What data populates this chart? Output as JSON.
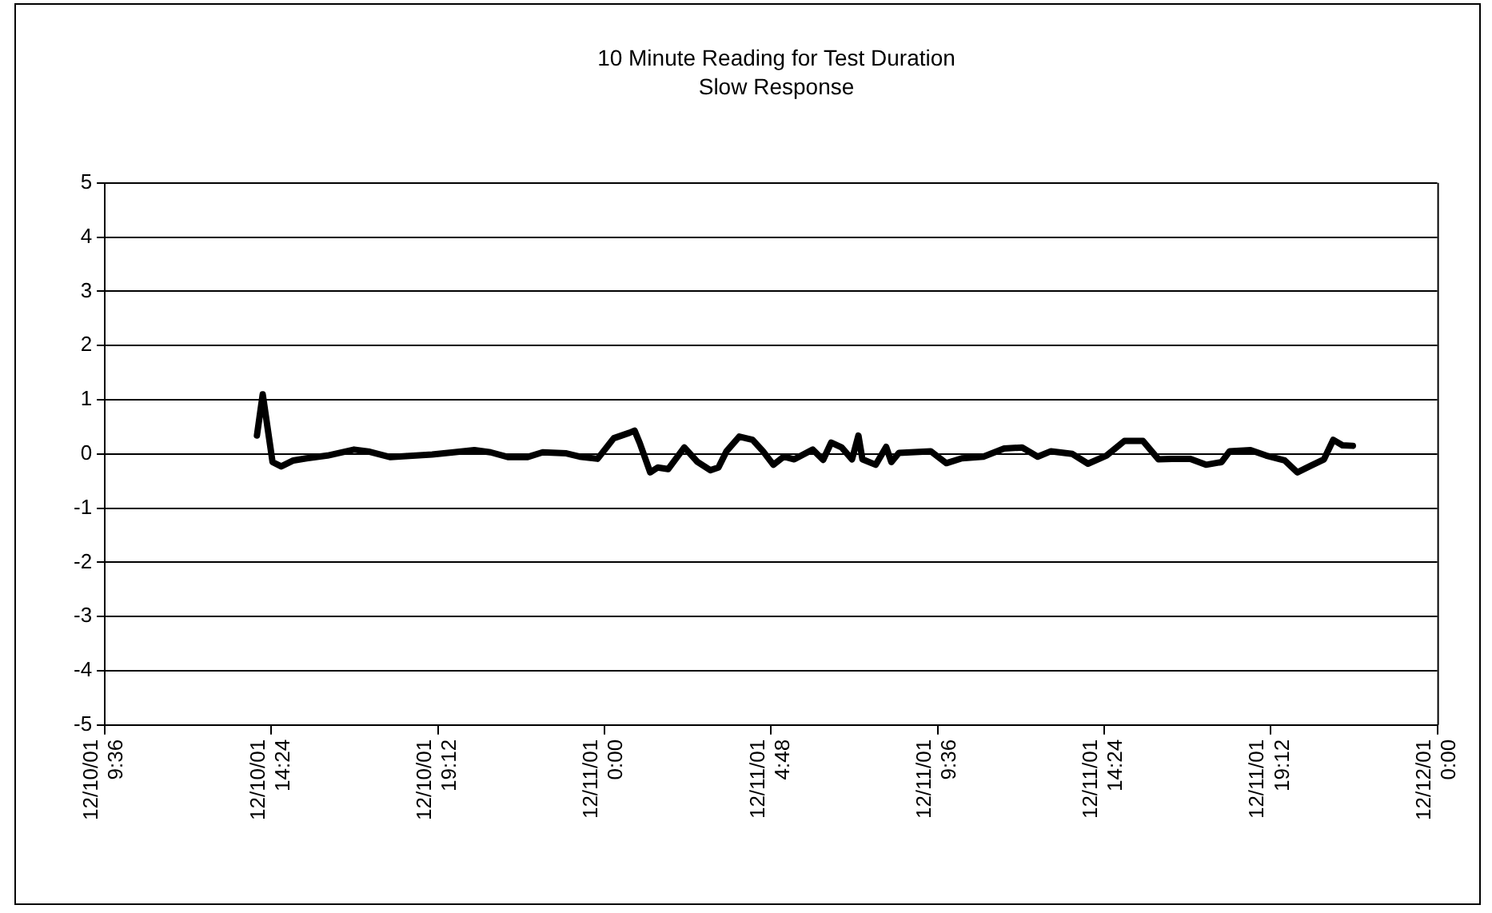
{
  "chart_data": {
    "type": "line",
    "title": "10 Minute Reading for Test Duration",
    "subtitle": "Slow Response",
    "x": [
      "--12-10T13:59",
      "--12-10T14:09",
      "--12-10T14:20",
      "--12-10T14:26",
      "--12-10T14:41",
      "--12-10T15:02",
      "--12-10T15:25",
      "--12-10T16:01",
      "--12-10T16:47",
      "--12-10T17:14",
      "--12-10T17:50",
      "--12-10T18:17",
      "--12-10T19:02",
      "--12-10T19:39",
      "--12-10T20:15",
      "--12-10T20:43",
      "--12-10T21:14",
      "--12-10T21:46",
      "--12-10T22:13",
      "--12-10T22:54",
      "--12-10T23:17",
      "--12-10T23:48",
      "--12-11T00:16",
      "--12-11T00:43",
      "--12-11T00:52",
      "--12-11T01:01",
      "--12-11T01:19",
      "--12-11T01:32",
      "--12-11T01:50",
      "--12-11T02:18",
      "--12-11T02:41",
      "--12-11T03:03",
      "--12-11T03:17",
      "--12-11T03:31",
      "--12-11T03:53",
      "--12-11T04:16",
      "--12-11T04:34",
      "--12-11T04:52",
      "--12-11T05:10",
      "--12-11T05:28",
      "--12-11T06:00",
      "--12-11T06:18",
      "--12-11T06:32",
      "--12-11T06:50",
      "--12-11T07:08",
      "--12-11T07:19",
      "--12-11T07:26",
      "--12-11T07:49",
      "--12-11T08:07",
      "--12-11T08:16",
      "--12-11T08:29",
      "--12-11T09:24",
      "--12-11T09:51",
      "--12-11T10:18",
      "--12-11T10:55",
      "--12-11T11:31",
      "--12-11T12:02",
      "--12-11T12:29",
      "--12-11T12:52",
      "--12-11T13:29",
      "--12-11T13:56",
      "--12-11T14:28",
      "--12-11T14:59",
      "--12-11T15:31",
      "--12-11T15:58",
      "--12-11T16:21",
      "--12-11T16:53",
      "--12-11T17:20",
      "--12-11T17:47",
      "--12-11T18:01",
      "--12-11T18:37",
      "--12-11T19:04",
      "--12-11T19:36",
      "--12-11T19:58",
      "--12-11T20:21",
      "--12-11T20:44",
      "--12-11T21:00",
      "--12-11T21:16",
      "--12-11T21:34"
    ],
    "series": [
      {
        "color": "#000000",
        "values": [
          0.34,
          1.1,
          0.29,
          -0.15,
          -0.23,
          -0.12,
          -0.08,
          -0.03,
          0.08,
          0.04,
          -0.06,
          -0.04,
          -0.01,
          0.03,
          0.07,
          0.03,
          -0.06,
          -0.06,
          0.03,
          0.01,
          -0.05,
          -0.09,
          0.29,
          0.39,
          0.43,
          0.2,
          -0.34,
          -0.25,
          -0.28,
          0.12,
          -0.15,
          -0.3,
          -0.25,
          0.05,
          0.32,
          0.26,
          0.05,
          -0.2,
          -0.05,
          -0.1,
          0.08,
          -0.11,
          0.21,
          0.12,
          -0.1,
          0.34,
          -0.1,
          -0.2,
          0.13,
          -0.15,
          0.02,
          0.05,
          -0.17,
          -0.08,
          -0.05,
          0.1,
          0.12,
          -0.05,
          0.05,
          0,
          -0.18,
          -0.03,
          0.24,
          0.24,
          -0.1,
          -0.09,
          -0.09,
          -0.2,
          -0.15,
          0.05,
          0.07,
          -0.03,
          -0.12,
          -0.34,
          -0.22,
          -0.1,
          0.26,
          0.16,
          0.15
        ]
      }
    ],
    "xlim": [
      "--12-10T09:36",
      "--12-12T00:00"
    ],
    "xticks": [
      {
        "value": "--12-10T09:36",
        "label": "12/10/01 9:36"
      },
      {
        "value": "--12-10T14:24",
        "label": "12/10/01 14:24"
      },
      {
        "value": "--12-10T19:12",
        "label": "12/10/01 19:12"
      },
      {
        "value": "--12-11T00:00",
        "label": "12/11/01 0:00"
      },
      {
        "value": "--12-11T04:48",
        "label": "12/11/01 4:48"
      },
      {
        "value": "--12-11T09:36",
        "label": "12/11/01 9:36"
      },
      {
        "value": "--12-11T14:24",
        "label": "12/11/01 14:24"
      },
      {
        "value": "--12-11T19:12",
        "label": "12/11/01 19:12"
      },
      {
        "value": "--12-12T00:00",
        "label": "12/12/01 0:00"
      }
    ],
    "ylim": [
      -5,
      5
    ],
    "yticks": [
      -5,
      -4,
      -3,
      -2,
      -1,
      0,
      1,
      2,
      3,
      4,
      5
    ],
    "grid": "y",
    "legend": false,
    "marker": "none",
    "line_style": "solid"
  }
}
